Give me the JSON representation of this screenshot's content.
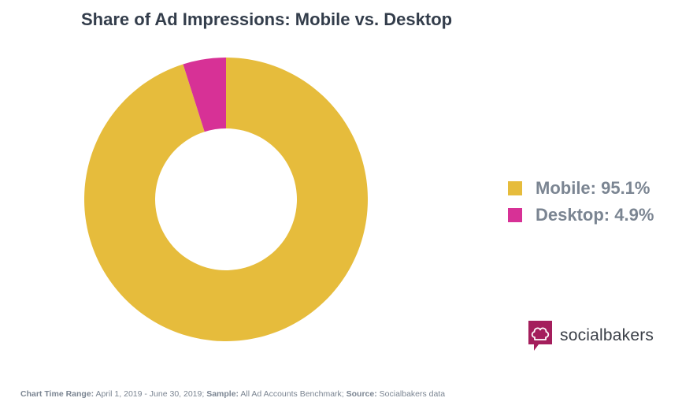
{
  "chart_data": {
    "type": "pie",
    "title": "Share of Ad Impressions: Mobile vs. Desktop",
    "categories": [
      "Mobile",
      "Desktop"
    ],
    "values": [
      95.1,
      4.9
    ],
    "unit": "%",
    "colors": [
      "#e6bc3c",
      "#d73196"
    ],
    "donut": true,
    "legend": {
      "placement": "right",
      "entries": [
        "Mobile: 95.1%",
        "Desktop: 4.9%"
      ]
    }
  },
  "brand": {
    "name": "socialbakers",
    "icon": "chef-hat-speech-bubble-icon",
    "color": "#a41e5c"
  },
  "footnote": {
    "time_label": "Chart Time Range:",
    "time_value": " April 1, 2019 - June 30, 2019; ",
    "sample_label": "Sample:",
    "sample_value": " All Ad Accounts Benchmark; ",
    "source_label": "Source:",
    "source_value": " Socialbakers data"
  }
}
